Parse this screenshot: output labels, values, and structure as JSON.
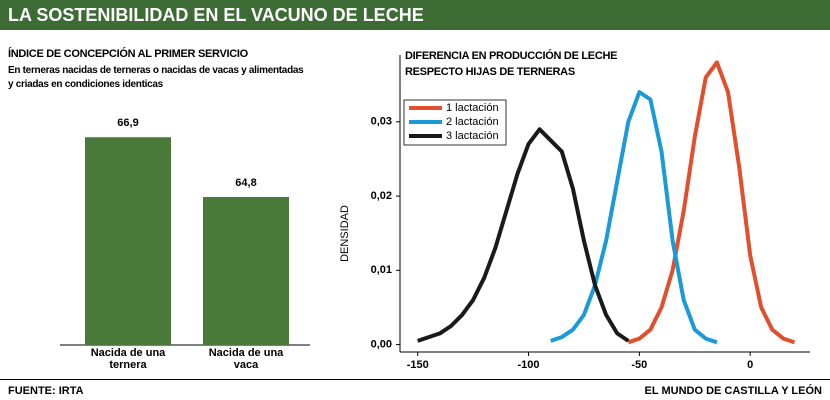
{
  "header": {
    "title": "LA SOSTENIBILIDAD EN EL VACUNO DE LECHE"
  },
  "footer": {
    "source": "FUENTE:  IRTA",
    "credit": "EL MUNDO DE CASTILLA Y LEÓN"
  },
  "chart_data": [
    {
      "type": "bar",
      "title": "ÍNDICE DE CONCEPCIÓN AL PRIMER SERVICIO",
      "subtitle": "En terneras nacidas de terneras o nacidas de vacas y alimentadas y criadas en condiciones identicas",
      "categories": [
        "Nacida de una ternera",
        "Nacida de una vaca"
      ],
      "values": [
        66.9,
        64.8
      ],
      "value_labels": [
        "66,9",
        "64,8"
      ],
      "color": "#4a7a3a",
      "ylim": [
        59.6,
        70
      ]
    },
    {
      "type": "line",
      "title": "DIFERENCIA EN PRODUCCIÓN DE LECHE RESPECTO HIJAS DE TERNERAS",
      "y_label": "DENSIDAD",
      "x": [
        -150,
        -145,
        -140,
        -135,
        -130,
        -125,
        -120,
        -115,
        -110,
        -105,
        -100,
        -95,
        -90,
        -85,
        -80,
        -75,
        -70,
        -65,
        -60,
        -55,
        -50,
        -45,
        -40,
        -35,
        -30,
        -25,
        -20,
        -15,
        -10,
        -5,
        0,
        5,
        10,
        15,
        20,
        25
      ],
      "series": [
        {
          "name": "1 lactación",
          "color": "#e0502e",
          "values": [
            null,
            null,
            null,
            null,
            null,
            null,
            null,
            null,
            null,
            null,
            null,
            null,
            null,
            null,
            null,
            null,
            null,
            null,
            null,
            0.0003,
            0.0008,
            0.002,
            0.005,
            0.01,
            0.018,
            0.028,
            0.036,
            0.038,
            0.034,
            0.024,
            0.012,
            0.005,
            0.002,
            0.0008,
            0.0003,
            null
          ]
        },
        {
          "name": "2 lactación",
          "color": "#1a9ad6",
          "values": [
            null,
            null,
            null,
            null,
            null,
            null,
            null,
            null,
            null,
            null,
            null,
            null,
            0.0005,
            0.001,
            0.002,
            0.004,
            0.008,
            0.014,
            0.022,
            0.03,
            0.034,
            0.033,
            0.026,
            0.014,
            0.006,
            0.002,
            0.0008,
            0.0003,
            null,
            null,
            null,
            null,
            null,
            null,
            null,
            null
          ]
        },
        {
          "name": "3 lactación",
          "color": "#1a1a1a",
          "values": [
            0.0005,
            0.001,
            0.0015,
            0.0025,
            0.004,
            0.006,
            0.009,
            0.013,
            0.018,
            0.023,
            0.027,
            0.029,
            0.0275,
            0.026,
            0.021,
            0.014,
            0.008,
            0.004,
            0.0015,
            0.0005,
            null,
            null,
            null,
            null,
            null,
            null,
            null,
            null,
            null,
            null,
            null,
            null,
            null,
            null,
            null,
            null
          ]
        }
      ],
      "xlim": [
        -158,
        27
      ],
      "xticks": [
        -150,
        -100,
        -50,
        0
      ],
      "ylim": [
        -0.001,
        0.039
      ],
      "yticks": [
        {
          "value": 0,
          "label": "0,00"
        },
        {
          "value": 0.01,
          "label": "0,01"
        },
        {
          "value": 0.02,
          "label": "0,02"
        },
        {
          "value": 0.03,
          "label": "0,03"
        }
      ],
      "legend": "upper left"
    }
  ]
}
